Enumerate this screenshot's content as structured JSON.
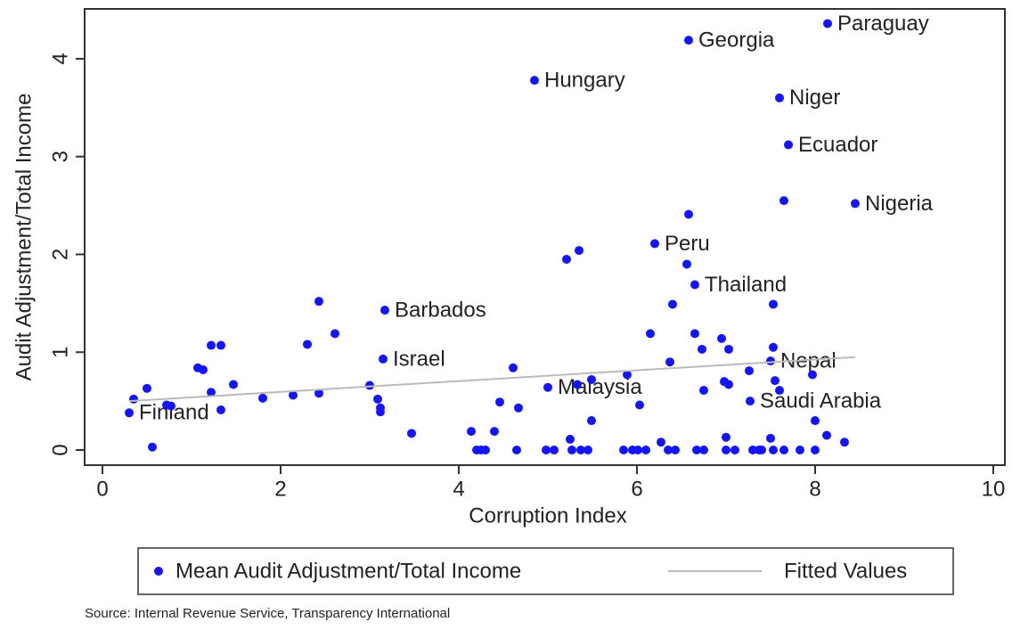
{
  "chart_data": {
    "type": "scatter",
    "xlabel": "Corruption Index",
    "ylabel": "Audit Adjustment/Total Income",
    "source": "Source: Internal Revenue Service, Transparency International",
    "xlim": [
      -0.2,
      10.13
    ],
    "ylim": [
      -0.155,
      4.51
    ],
    "xticks": [
      0,
      2,
      4,
      6,
      8,
      10
    ],
    "yticks": [
      0,
      1,
      2,
      3,
      4
    ],
    "grid": false,
    "legend": "bottom",
    "series": [
      {
        "name": "Mean Audit Adjustment/Total Income",
        "color": "#1414ff",
        "type": "scatter",
        "x": [
          8.14,
          6.58,
          4.85,
          7.6,
          7.7,
          8.45,
          6.2,
          6.65,
          3.17,
          3.15,
          7.5,
          5.0,
          7.27,
          0.3,
          6.58,
          7.65,
          5.21,
          5.35,
          6.56,
          7.53,
          6.4,
          2.43,
          2.61,
          2.3,
          1.22,
          1.33,
          1.07,
          1.13,
          1.47,
          1.22,
          0.35,
          0.5,
          0.72,
          0.77,
          1.33,
          1.8,
          2.14,
          2.43,
          3.0,
          3.09,
          3.12,
          3.12,
          0.56,
          3.47,
          4.14,
          4.4,
          4.46,
          4.61,
          4.67,
          4.2,
          4.25,
          4.3,
          4.65,
          4.98,
          5.07,
          5.25,
          5.27,
          5.33,
          5.37,
          5.45,
          5.49,
          5.49,
          5.89,
          5.85,
          5.95,
          6.01,
          6.1,
          6.03,
          6.15,
          6.27,
          6.35,
          6.43,
          6.37,
          6.65,
          6.73,
          6.75,
          6.67,
          6.75,
          6.95,
          7.03,
          6.98,
          7.03,
          7.0,
          7.0,
          7.1,
          7.26,
          7.3,
          7.37,
          7.5,
          7.4,
          7.53,
          7.53,
          7.55,
          7.6,
          7.65,
          7.83,
          7.97,
          8.0,
          8.13,
          8.33,
          8.0
        ],
        "values": [
          4.36,
          4.19,
          3.78,
          3.6,
          3.12,
          2.52,
          2.11,
          1.69,
          1.43,
          0.93,
          0.91,
          0.64,
          0.5,
          0.38,
          2.41,
          2.55,
          1.95,
          2.04,
          1.9,
          1.49,
          1.49,
          1.52,
          1.19,
          1.08,
          1.07,
          1.07,
          0.84,
          0.82,
          0.67,
          0.59,
          0.52,
          0.63,
          0.46,
          0.45,
          0.41,
          0.53,
          0.56,
          0.58,
          0.66,
          0.52,
          0.43,
          0.39,
          0.03,
          0.17,
          0.19,
          0.19,
          0.49,
          0.84,
          0.43,
          0,
          0,
          0,
          0,
          0,
          0,
          0.11,
          0,
          0.67,
          0,
          0,
          0.72,
          0.3,
          0.77,
          0,
          0,
          0,
          0,
          0.46,
          1.19,
          0.08,
          0,
          0,
          0.9,
          1.19,
          1.03,
          0.61,
          0,
          0,
          1.14,
          1.03,
          0.7,
          0.67,
          0.13,
          0,
          0,
          0.81,
          0,
          0,
          0.12,
          0,
          0,
          1.05,
          0.71,
          0.61,
          0,
          0,
          0.77,
          0.3,
          0.15,
          0.08,
          0
        ],
        "point_labels": [
          "Paraguay",
          "Georgia",
          "Hungary",
          "Niger",
          "Ecuador",
          "Nigeria",
          "Peru",
          "Thailand",
          "Barbados",
          "Israel",
          "Nepal",
          "Malaysia",
          "Saudi Arabia",
          "Finland",
          null,
          null,
          null,
          null,
          null,
          null,
          null,
          null,
          null,
          null,
          null,
          null,
          null,
          null,
          null,
          null,
          null,
          null,
          null,
          null,
          null,
          null,
          null,
          null,
          null,
          null,
          null,
          null,
          null,
          null,
          null,
          null,
          null,
          null,
          null,
          null,
          null,
          null,
          null,
          null,
          null,
          null,
          null,
          null,
          null,
          null,
          null,
          null,
          null,
          null,
          null,
          null,
          null,
          null,
          null,
          null,
          null,
          null,
          null,
          null,
          null,
          null,
          null,
          null,
          null,
          null,
          null,
          null,
          null,
          null,
          null,
          null,
          null,
          null,
          null,
          null,
          null,
          null,
          null,
          null,
          null,
          null,
          null,
          null,
          null,
          null,
          null
        ]
      },
      {
        "name": "Fitted Values",
        "color": "#bbbbbb",
        "type": "line",
        "x": [
          0.3,
          8.45
        ],
        "values": [
          0.5,
          0.95
        ]
      }
    ]
  }
}
